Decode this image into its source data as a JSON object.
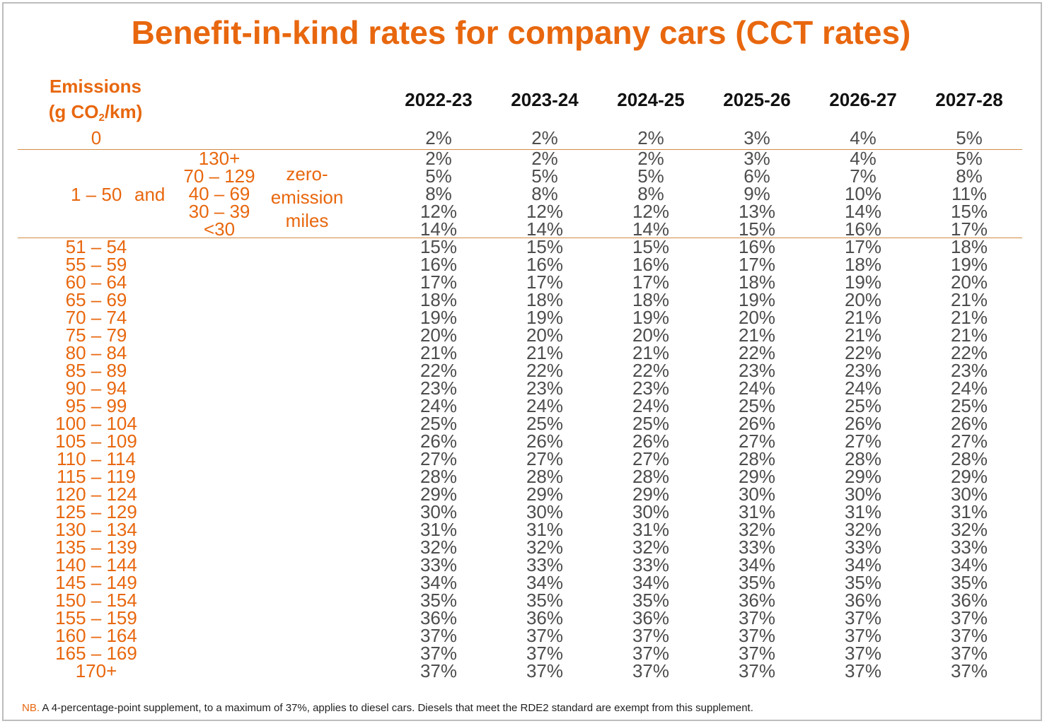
{
  "title": "Benefit-in-kind rates for company cars (CCT rates)",
  "emissions_header": {
    "line1": "Emissions",
    "line2_pre": "(g CO",
    "line2_sub": "2",
    "line2_post": "/km)"
  },
  "years": [
    "2022-23",
    "2023-24",
    "2024-25",
    "2025-26",
    "2026-27",
    "2027-28"
  ],
  "zero_row": {
    "label": "0",
    "values": [
      "2%",
      "2%",
      "2%",
      "3%",
      "4%",
      "5%"
    ]
  },
  "ulev_block": {
    "band_label": "1 – 50",
    "and_label": "and",
    "zero_emission_label": [
      "zero-",
      "emission",
      "miles"
    ],
    "rows": [
      {
        "miles": "130+",
        "values": [
          "2%",
          "2%",
          "2%",
          "3%",
          "4%",
          "5%"
        ]
      },
      {
        "miles": "70 – 129",
        "values": [
          "5%",
          "5%",
          "5%",
          "6%",
          "7%",
          "8%"
        ]
      },
      {
        "miles": "40 – 69",
        "values": [
          "8%",
          "8%",
          "8%",
          "9%",
          "10%",
          "11%"
        ]
      },
      {
        "miles": "30 – 39",
        "values": [
          "12%",
          "12%",
          "12%",
          "13%",
          "14%",
          "15%"
        ]
      },
      {
        "miles": "<30",
        "values": [
          "14%",
          "14%",
          "14%",
          "15%",
          "16%",
          "17%"
        ]
      }
    ]
  },
  "rows": [
    {
      "band": "51 – 54",
      "values": [
        "15%",
        "15%",
        "15%",
        "16%",
        "17%",
        "18%"
      ]
    },
    {
      "band": "55 – 59",
      "values": [
        "16%",
        "16%",
        "16%",
        "17%",
        "18%",
        "19%"
      ]
    },
    {
      "band": "60 – 64",
      "values": [
        "17%",
        "17%",
        "17%",
        "18%",
        "19%",
        "20%"
      ]
    },
    {
      "band": "65 – 69",
      "values": [
        "18%",
        "18%",
        "18%",
        "19%",
        "20%",
        "21%"
      ]
    },
    {
      "band": "70 – 74",
      "values": [
        "19%",
        "19%",
        "19%",
        "20%",
        "21%",
        "21%"
      ]
    },
    {
      "band": "75 – 79",
      "values": [
        "20%",
        "20%",
        "20%",
        "21%",
        "21%",
        "21%"
      ]
    },
    {
      "band": "80 – 84",
      "values": [
        "21%",
        "21%",
        "21%",
        "22%",
        "22%",
        "22%"
      ]
    },
    {
      "band": "85 – 89",
      "values": [
        "22%",
        "22%",
        "22%",
        "23%",
        "23%",
        "23%"
      ]
    },
    {
      "band": "90 – 94",
      "values": [
        "23%",
        "23%",
        "23%",
        "24%",
        "24%",
        "24%"
      ]
    },
    {
      "band": "95 – 99",
      "values": [
        "24%",
        "24%",
        "24%",
        "25%",
        "25%",
        "25%"
      ]
    },
    {
      "band": "100 – 104",
      "values": [
        "25%",
        "25%",
        "25%",
        "26%",
        "26%",
        "26%"
      ]
    },
    {
      "band": "105 – 109",
      "values": [
        "26%",
        "26%",
        "26%",
        "27%",
        "27%",
        "27%"
      ]
    },
    {
      "band": "110 – 114",
      "values": [
        "27%",
        "27%",
        "27%",
        "28%",
        "28%",
        "28%"
      ]
    },
    {
      "band": "115 – 119",
      "values": [
        "28%",
        "28%",
        "28%",
        "29%",
        "29%",
        "29%"
      ]
    },
    {
      "band": "120 – 124",
      "values": [
        "29%",
        "29%",
        "29%",
        "30%",
        "30%",
        "30%"
      ]
    },
    {
      "band": "125 – 129",
      "values": [
        "30%",
        "30%",
        "30%",
        "31%",
        "31%",
        "31%"
      ]
    },
    {
      "band": "130 – 134",
      "values": [
        "31%",
        "31%",
        "31%",
        "32%",
        "32%",
        "32%"
      ]
    },
    {
      "band": "135 – 139",
      "values": [
        "32%",
        "32%",
        "32%",
        "33%",
        "33%",
        "33%"
      ]
    },
    {
      "band": "140 – 144",
      "values": [
        "33%",
        "33%",
        "33%",
        "34%",
        "34%",
        "34%"
      ]
    },
    {
      "band": "145 – 149",
      "values": [
        "34%",
        "34%",
        "34%",
        "35%",
        "35%",
        "35%"
      ]
    },
    {
      "band": "150 – 154",
      "values": [
        "35%",
        "35%",
        "35%",
        "36%",
        "36%",
        "36%"
      ]
    },
    {
      "band": "155 – 159",
      "values": [
        "36%",
        "36%",
        "36%",
        "37%",
        "37%",
        "37%"
      ]
    },
    {
      "band": "160 – 164",
      "values": [
        "37%",
        "37%",
        "37%",
        "37%",
        "37%",
        "37%"
      ]
    },
    {
      "band": "165 – 169",
      "values": [
        "37%",
        "37%",
        "37%",
        "37%",
        "37%",
        "37%"
      ]
    },
    {
      "band": "170+",
      "values": [
        "37%",
        "37%",
        "37%",
        "37%",
        "37%",
        "37%"
      ]
    }
  ],
  "note": {
    "prefix": "NB.",
    "text": "A 4-percentage-point supplement, to a maximum of 37%, applies to diesel cars. Diesels that meet the RDE2 standard are exempt from this supplement."
  },
  "colors": {
    "accent": "#e8670e",
    "value_text": "#4d4d4d",
    "rule": "#d38a47",
    "frame": "#bdbdbd"
  }
}
